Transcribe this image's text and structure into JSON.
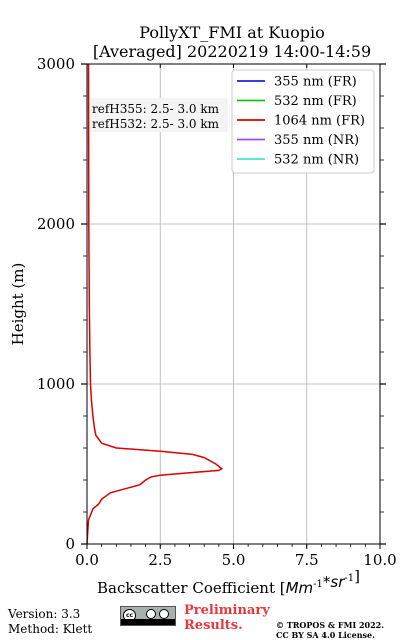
{
  "header": {
    "title_line1": "PollyXT_FMI at Kuopio",
    "title_line2": "[Averaged] 20220219 14:00-14:59"
  },
  "annotations": {
    "ref355": "refH355:  2.5- 3.0 km",
    "ref532": "refH532:  2.5- 3.0 km"
  },
  "footer": {
    "version": "Version: 3.3",
    "method": "Method: Klett",
    "preliminary_line1": "Preliminary",
    "preliminary_line2": "Results.",
    "copyright_line1": "© TROPOS & FMI 2022.",
    "copyright_line2": "CC BY SA 4.0 License."
  },
  "chart_data": {
    "type": "line",
    "xlabel": "Backscatter Coefficient [$Mm^{-1}*sr^{-1}$]",
    "ylabel": "Height (m)",
    "xlim": [
      0,
      10
    ],
    "ylim": [
      0,
      3000
    ],
    "xticks": [
      "0.0",
      "2.5",
      "5.0",
      "7.5",
      "10.0"
    ],
    "yticks": [
      "0",
      "1000",
      "2000",
      "3000"
    ],
    "grid": true,
    "legend_position": "top-right",
    "series": [
      {
        "name": "355 nm (FR)",
        "color": "#2020e0",
        "x": [],
        "y": []
      },
      {
        "name": "532 nm (FR)",
        "color": "#22bb22",
        "x": [],
        "y": []
      },
      {
        "name": "1064 nm (FR)",
        "color": "#dd0000",
        "x": [
          0.0,
          0.05,
          0.2,
          0.4,
          0.5,
          0.8,
          1.8,
          2.0,
          2.2,
          2.5,
          3.5,
          4.5,
          4.6,
          4.4,
          4.0,
          3.6,
          2.5,
          1.0,
          0.5,
          0.3,
          0.25,
          0.2,
          0.15,
          0.12,
          0.1,
          0.08,
          0.06,
          0.05
        ],
        "y": [
          0,
          150,
          220,
          250,
          280,
          320,
          370,
          400,
          420,
          430,
          445,
          460,
          470,
          500,
          540,
          560,
          580,
          600,
          630,
          680,
          730,
          800,
          900,
          1000,
          1200,
          1500,
          2000,
          3000
        ]
      },
      {
        "name": "355 nm (NR)",
        "color": "#a050e0",
        "x": [],
        "y": []
      },
      {
        "name": "532 nm (NR)",
        "color": "#40e8c8",
        "x": [],
        "y": []
      }
    ]
  }
}
